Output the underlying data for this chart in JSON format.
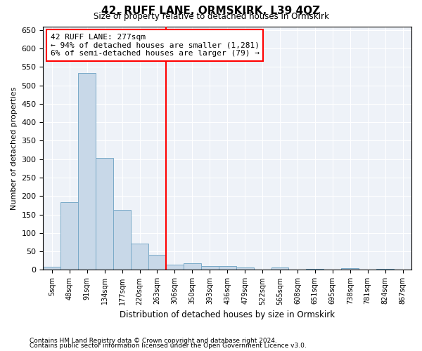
{
  "title": "42, RUFF LANE, ORMSKIRK, L39 4QZ",
  "subtitle": "Size of property relative to detached houses in Ormskirk",
  "xlabel": "Distribution of detached houses by size in Ormskirk",
  "ylabel": "Number of detached properties",
  "bar_color": "#c8d8e8",
  "bar_edge_color": "#7aaac8",
  "vline_color": "red",
  "vline_index": 6.5,
  "annotation_text": "42 RUFF LANE: 277sqm\n← 94% of detached houses are smaller (1,281)\n6% of semi-detached houses are larger (79) →",
  "annotation_box_color": "white",
  "annotation_box_edge": "red",
  "bin_labels": [
    "5sqm",
    "48sqm",
    "91sqm",
    "134sqm",
    "177sqm",
    "220sqm",
    "263sqm",
    "306sqm",
    "350sqm",
    "393sqm",
    "436sqm",
    "479sqm",
    "522sqm",
    "565sqm",
    "608sqm",
    "651sqm",
    "695sqm",
    "738sqm",
    "781sqm",
    "824sqm",
    "867sqm"
  ],
  "bar_heights": [
    8,
    183,
    534,
    303,
    162,
    72,
    40,
    14,
    18,
    10,
    10,
    7,
    0,
    6,
    0,
    3,
    0,
    4,
    0,
    3,
    0
  ],
  "ylim": [
    0,
    660
  ],
  "yticks": [
    0,
    50,
    100,
    150,
    200,
    250,
    300,
    350,
    400,
    450,
    500,
    550,
    600,
    650
  ],
  "footnote1": "Contains HM Land Registry data © Crown copyright and database right 2024.",
  "footnote2": "Contains public sector information licensed under the Open Government Licence v3.0.",
  "figsize": [
    6.0,
    5.0
  ],
  "dpi": 100,
  "background_color": "#eef2f8",
  "grid_color": "#ffffff"
}
